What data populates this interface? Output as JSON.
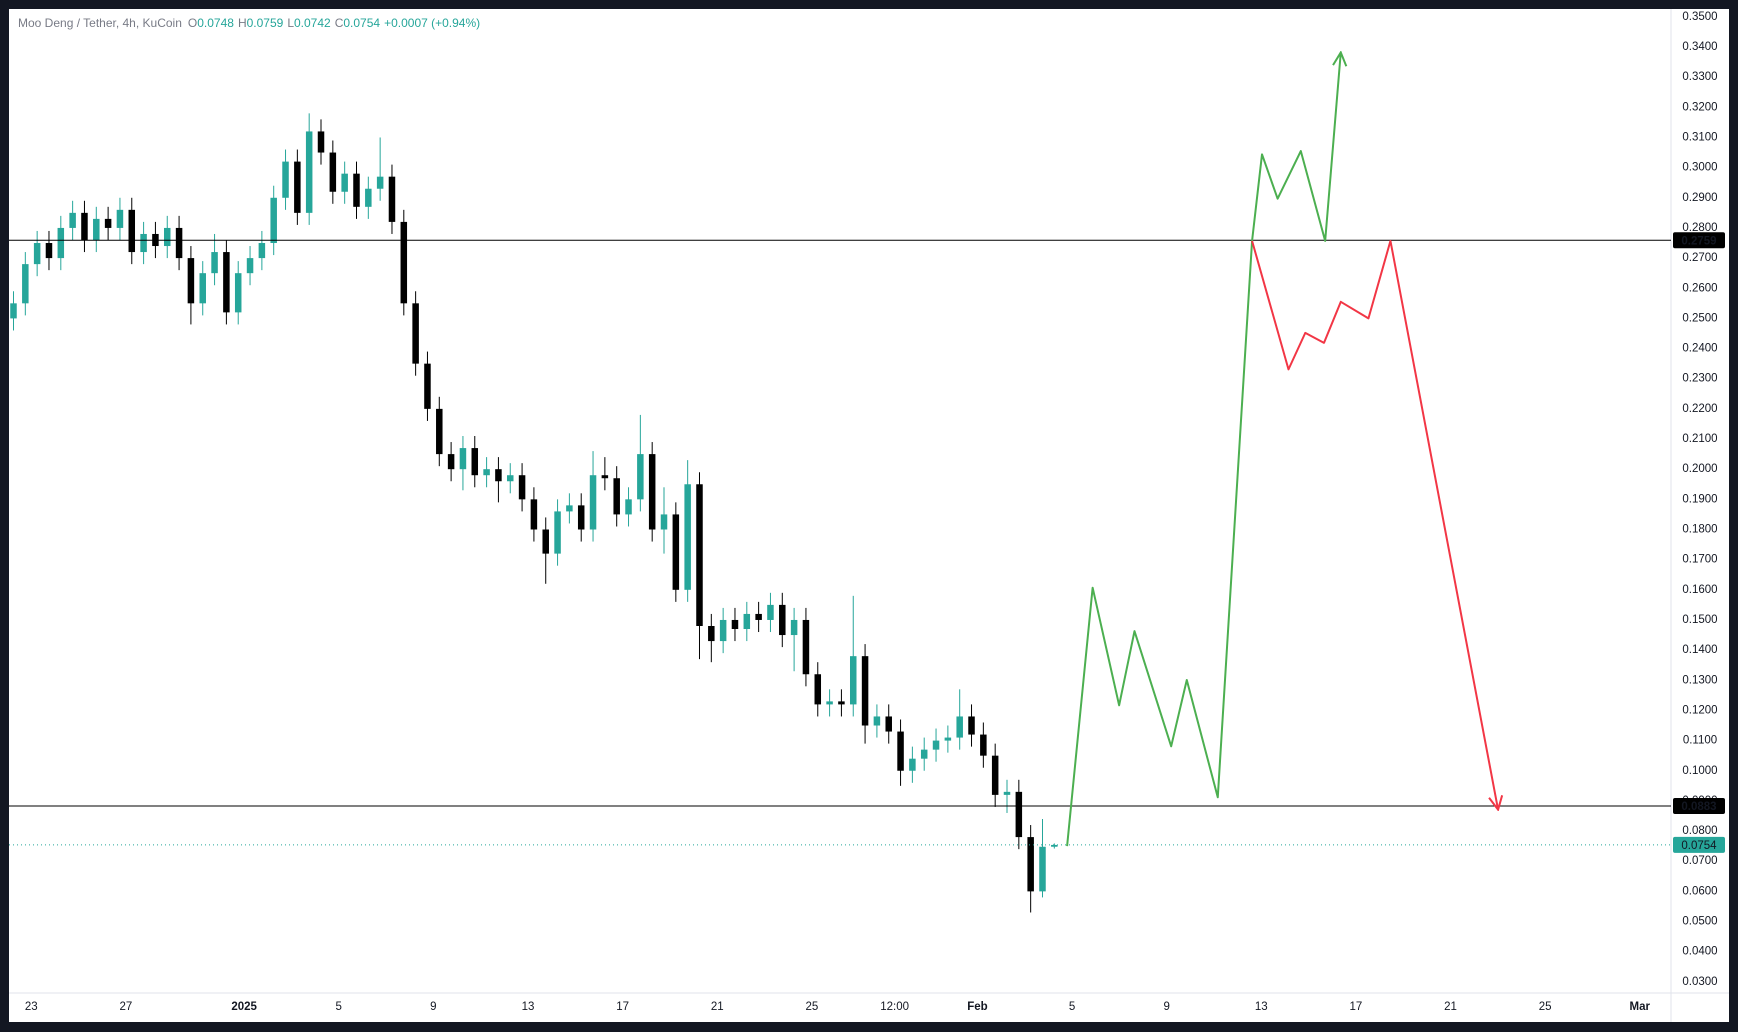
{
  "chart_data": {
    "type": "candlestick",
    "title": "Moo Deng / Tether, 4h, KuCoin",
    "header": [
      {
        "label": "O",
        "value": 0.0748
      },
      {
        "label": "H",
        "value": 0.0759
      },
      {
        "label": "L",
        "value": 0.0742
      },
      {
        "label": "C",
        "value": 0.0754
      }
    ],
    "change": "+0.0007 (+0.94%)",
    "up_color": "#26a69a",
    "down_color": "#000000",
    "grid": false,
    "xlim": [
      -0.94,
      69.32
    ],
    "ylim": [
      0.0263,
      0.3526
    ],
    "xticks": [
      {
        "value": 0,
        "label": "23"
      },
      {
        "value": 4,
        "label": "27"
      },
      {
        "value": 9,
        "label": "2025",
        "bold": true
      },
      {
        "value": 13,
        "label": "5"
      },
      {
        "value": 17,
        "label": "9"
      },
      {
        "value": 21,
        "label": "13"
      },
      {
        "value": 25,
        "label": "17"
      },
      {
        "value": 29,
        "label": "21"
      },
      {
        "value": 33,
        "label": "25"
      },
      {
        "value": 36.5,
        "label": "12:00"
      },
      {
        "value": 40,
        "label": "Feb",
        "bold": true
      },
      {
        "value": 44,
        "label": "5"
      },
      {
        "value": 48,
        "label": "9"
      },
      {
        "value": 52,
        "label": "13"
      },
      {
        "value": 56,
        "label": "17"
      },
      {
        "value": 60,
        "label": "21"
      },
      {
        "value": 64,
        "label": "25"
      },
      {
        "value": 68,
        "label": "Mar",
        "bold": true
      }
    ],
    "yticks": [
      {
        "value": 0.03,
        "label": "0.0300"
      },
      {
        "value": 0.04,
        "label": "0.0400"
      },
      {
        "value": 0.05,
        "label": "0.0500"
      },
      {
        "value": 0.06,
        "label": "0.0600"
      },
      {
        "value": 0.07,
        "label": "0.0700"
      },
      {
        "value": 0.08,
        "label": "0.0800"
      },
      {
        "value": 0.09,
        "label": "0.0900"
      },
      {
        "value": 0.1,
        "label": "0.1000"
      },
      {
        "value": 0.11,
        "label": "0.1100"
      },
      {
        "value": 0.12,
        "label": "0.1200"
      },
      {
        "value": 0.13,
        "label": "0.1300"
      },
      {
        "value": 0.14,
        "label": "0.1400"
      },
      {
        "value": 0.15,
        "label": "0.1500"
      },
      {
        "value": 0.16,
        "label": "0.1600"
      },
      {
        "value": 0.17,
        "label": "0.1700"
      },
      {
        "value": 0.18,
        "label": "0.1800"
      },
      {
        "value": 0.19,
        "label": "0.1900"
      },
      {
        "value": 0.2,
        "label": "0.2000"
      },
      {
        "value": 0.21,
        "label": "0.2100"
      },
      {
        "value": 0.22,
        "label": "0.2200"
      },
      {
        "value": 0.23,
        "label": "0.2300"
      },
      {
        "value": 0.24,
        "label": "0.2400"
      },
      {
        "value": 0.25,
        "label": "0.2500"
      },
      {
        "value": 0.26,
        "label": "0.2600"
      },
      {
        "value": 0.27,
        "label": "0.2700"
      },
      {
        "value": 0.28,
        "label": "0.2800"
      },
      {
        "value": 0.29,
        "label": "0.2900"
      },
      {
        "value": 0.3,
        "label": "0.3000"
      },
      {
        "value": 0.31,
        "label": "0.3100"
      },
      {
        "value": 0.32,
        "label": "0.3200"
      },
      {
        "value": 0.33,
        "label": "0.3300"
      },
      {
        "value": 0.34,
        "label": "0.3400"
      },
      {
        "value": 0.35,
        "label": "0.3500"
      }
    ],
    "x": [
      -0.75,
      -0.25,
      0.25,
      0.75,
      1.25,
      1.75,
      2.25,
      2.75,
      3.25,
      3.75,
      4.25,
      4.75,
      5.25,
      5.75,
      6.25,
      6.75,
      7.25,
      7.75,
      8.25,
      8.75,
      9.25,
      9.75,
      10.25,
      10.75,
      11.25,
      11.75,
      12.25,
      12.75,
      13.25,
      13.75,
      14.25,
      14.75,
      15.25,
      15.75,
      16.25,
      16.75,
      17.25,
      17.75,
      18.25,
      18.75,
      19.25,
      19.75,
      20.25,
      20.75,
      21.25,
      21.75,
      22.25,
      22.75,
      23.25,
      23.75,
      24.25,
      24.75,
      25.25,
      25.75,
      26.25,
      26.75,
      27.25,
      27.75,
      28.25,
      28.75,
      29.25,
      29.75,
      30.25,
      30.75,
      31.25,
      31.75,
      32.25,
      32.75,
      33.25,
      33.75,
      34.25,
      34.75,
      35.25,
      35.75,
      36.25,
      36.75,
      37.25,
      37.75,
      38.25,
      38.75,
      39.25,
      39.75,
      40.25,
      40.75,
      41.25,
      41.75,
      42.25,
      42.75,
      43.25
    ],
    "open": [
      0.25,
      0.255,
      0.268,
      0.275,
      0.27,
      0.28,
      0.285,
      0.276,
      0.283,
      0.28,
      0.286,
      0.272,
      0.278,
      0.274,
      0.28,
      0.27,
      0.255,
      0.265,
      0.272,
      0.252,
      0.265,
      0.27,
      0.275,
      0.29,
      0.302,
      0.285,
      0.312,
      0.305,
      0.292,
      0.298,
      0.287,
      0.293,
      0.297,
      0.282,
      0.255,
      0.235,
      0.22,
      0.205,
      0.2,
      0.207,
      0.198,
      0.2,
      0.196,
      0.198,
      0.19,
      0.18,
      0.172,
      0.186,
      0.188,
      0.18,
      0.198,
      0.197,
      0.185,
      0.19,
      0.205,
      0.18,
      0.185,
      0.16,
      0.195,
      0.148,
      0.143,
      0.15,
      0.147,
      0.152,
      0.15,
      0.155,
      0.145,
      0.15,
      0.132,
      0.122,
      0.123,
      0.122,
      0.138,
      0.115,
      0.118,
      0.113,
      0.1,
      0.104,
      0.107,
      0.11,
      0.111,
      0.118,
      0.112,
      0.105,
      0.092,
      0.093,
      0.078,
      0.06,
      0.0748
    ],
    "high": [
      0.259,
      0.272,
      0.279,
      0.279,
      0.284,
      0.289,
      0.289,
      0.287,
      0.287,
      0.29,
      0.29,
      0.282,
      0.282,
      0.284,
      0.284,
      0.274,
      0.269,
      0.278,
      0.276,
      0.269,
      0.274,
      0.279,
      0.294,
      0.306,
      0.306,
      0.318,
      0.316,
      0.309,
      0.302,
      0.302,
      0.297,
      0.31,
      0.301,
      0.286,
      0.259,
      0.239,
      0.224,
      0.209,
      0.211,
      0.211,
      0.204,
      0.204,
      0.202,
      0.202,
      0.194,
      0.184,
      0.19,
      0.192,
      0.192,
      0.206,
      0.204,
      0.201,
      0.194,
      0.218,
      0.209,
      0.194,
      0.189,
      0.203,
      0.199,
      0.152,
      0.154,
      0.154,
      0.156,
      0.156,
      0.159,
      0.159,
      0.154,
      0.154,
      0.136,
      0.127,
      0.127,
      0.158,
      0.142,
      0.122,
      0.122,
      0.117,
      0.108,
      0.111,
      0.114,
      0.115,
      0.127,
      0.122,
      0.116,
      0.109,
      0.097,
      0.097,
      0.082,
      0.084,
      0.0759
    ],
    "low": [
      0.246,
      0.251,
      0.264,
      0.266,
      0.266,
      0.276,
      0.272,
      0.272,
      0.276,
      0.276,
      0.268,
      0.268,
      0.27,
      0.27,
      0.266,
      0.248,
      0.251,
      0.261,
      0.248,
      0.248,
      0.261,
      0.266,
      0.271,
      0.286,
      0.281,
      0.281,
      0.301,
      0.288,
      0.288,
      0.283,
      0.283,
      0.289,
      0.278,
      0.251,
      0.231,
      0.216,
      0.201,
      0.196,
      0.193,
      0.194,
      0.194,
      0.189,
      0.192,
      0.186,
      0.176,
      0.162,
      0.168,
      0.182,
      0.176,
      0.176,
      0.193,
      0.181,
      0.181,
      0.186,
      0.176,
      0.172,
      0.156,
      0.156,
      0.137,
      0.136,
      0.139,
      0.143,
      0.143,
      0.146,
      0.146,
      0.141,
      0.133,
      0.128,
      0.118,
      0.118,
      0.118,
      0.118,
      0.109,
      0.111,
      0.109,
      0.095,
      0.096,
      0.1,
      0.103,
      0.106,
      0.107,
      0.108,
      0.101,
      0.088,
      0.086,
      0.074,
      0.053,
      0.058,
      0.0742
    ],
    "close": [
      0.255,
      0.268,
      0.275,
      0.27,
      0.28,
      0.285,
      0.276,
      0.283,
      0.28,
      0.286,
      0.272,
      0.278,
      0.274,
      0.28,
      0.27,
      0.255,
      0.265,
      0.272,
      0.252,
      0.265,
      0.27,
      0.275,
      0.29,
      0.302,
      0.285,
      0.312,
      0.305,
      0.292,
      0.298,
      0.287,
      0.293,
      0.297,
      0.282,
      0.255,
      0.235,
      0.22,
      0.205,
      0.2,
      0.207,
      0.198,
      0.2,
      0.196,
      0.198,
      0.19,
      0.18,
      0.172,
      0.186,
      0.188,
      0.18,
      0.198,
      0.197,
      0.185,
      0.19,
      0.205,
      0.18,
      0.185,
      0.16,
      0.195,
      0.148,
      0.143,
      0.15,
      0.147,
      0.152,
      0.15,
      0.155,
      0.145,
      0.15,
      0.132,
      0.122,
      0.123,
      0.122,
      0.138,
      0.115,
      0.118,
      0.113,
      0.1,
      0.104,
      0.107,
      0.11,
      0.111,
      0.118,
      0.112,
      0.105,
      0.092,
      0.093,
      0.078,
      0.06,
      0.0748,
      0.0754
    ],
    "levels": [
      {
        "value": 0.2759,
        "color": "#000000"
      },
      {
        "value": 0.0883,
        "color": "#000000"
      }
    ],
    "last_price": {
      "value": 0.0754,
      "color": "#26a69a"
    },
    "drawings": [
      {
        "color": "#4caf50",
        "x": [
          43.79,
          44.87,
          45.99,
          46.64,
          48.19,
          48.85,
          50.16,
          51.61,
          52.03,
          52.69,
          53.67,
          54.7,
          55.36
        ],
        "y": [
          0.075,
          0.1607,
          0.1217,
          0.1463,
          0.1081,
          0.1301,
          0.0912,
          0.2757,
          0.3044,
          0.2897,
          0.3055,
          0.2757,
          0.3382
        ]
      },
      {
        "color": "#f23645",
        "x": [
          51.61,
          53.15,
          53.86,
          54.65,
          55.36,
          56.53,
          57.46,
          62.01
        ],
        "y": [
          0.2757,
          0.2331,
          0.2452,
          0.2419,
          0.2555,
          0.25,
          0.2757,
          0.0871
        ]
      }
    ]
  }
}
